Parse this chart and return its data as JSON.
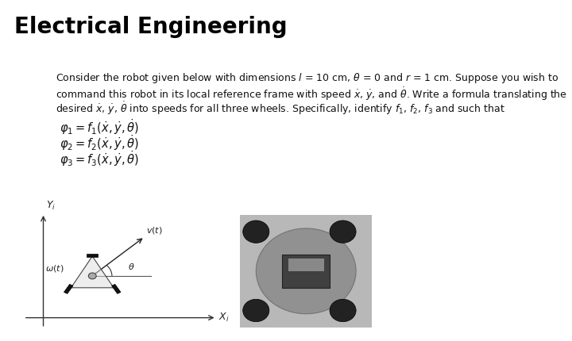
{
  "title": "Electrical Engineering",
  "para_line1": "Consider the robot given below with dimensions $l$ = 10 cm, $\\theta$ = 0 and $r$ = 1 cm. Suppose you wish to",
  "para_line2": "command this robot in its local reference frame with speed $\\dot{x}$, $\\dot{y}$, and $\\dot{\\theta}$. Write a formula translating the",
  "para_line3": "desired $\\dot{x}$, $\\dot{y}$, $\\dot{\\theta}$ into speeds for all three wheels. Specifically, identify $f_1$, $f_2$, $f_3$ and such that",
  "eq1": "$\\varphi_1 = f_1(\\dot{x}, \\dot{y}, \\dot{\\theta})$",
  "eq2": "$\\varphi_2 = f_2(\\dot{x}, \\dot{y}, \\dot{\\theta})$",
  "eq3": "$\\varphi_3 = f_3(\\dot{x}, \\dot{y}, \\dot{\\theta})$",
  "bg_color": "#ffffff",
  "title_fontsize": 20,
  "body_fontsize": 9.0,
  "eq_fontsize": 10.5,
  "diag_label_fontsize": 8.0
}
